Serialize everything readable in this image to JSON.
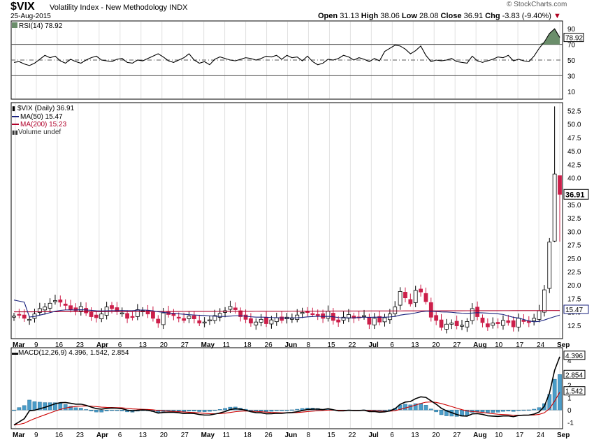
{
  "header": {
    "symbol": "$VIX",
    "name": "Volatility Index - New Methodology",
    "exchange": "INDX",
    "date": "25-Aug-2015",
    "watermark": "© StockCharts.com",
    "open_label": "Open",
    "open": "31.13",
    "high_label": "High",
    "high": "38.06",
    "low_label": "Low",
    "low": "28.08",
    "close_label": "Close",
    "close": "36.91",
    "chg_label": "Chg",
    "chg": "-3.83 (-9.40%)",
    "chg_arrow": "▼"
  },
  "colors": {
    "up": "#ffffff",
    "down": "#cc1f4a",
    "ma50": "#1a237e",
    "ma200": "#b0002a",
    "rsi_fill": "#6b8e6b",
    "hist": "#4a9cc8",
    "macd": "#000000",
    "signal": "#cc0000",
    "grid": "#e2e2e2"
  },
  "chart_data": [
    {
      "type": "line",
      "title": "RSI(14) 78.92",
      "series": [
        {
          "name": "RSI(14)",
          "values": [
            47,
            48,
            45,
            43,
            46,
            51,
            56,
            53,
            55,
            49,
            46,
            51,
            48,
            46,
            50,
            53,
            55,
            50,
            49,
            48,
            51,
            52,
            47,
            46,
            50,
            49,
            52,
            55,
            58,
            54,
            49,
            47,
            50,
            53,
            58,
            50,
            46,
            48,
            44,
            51,
            54,
            52,
            50,
            49,
            51,
            53,
            52,
            50,
            52,
            55,
            54,
            56,
            51,
            56,
            53,
            54,
            49,
            55,
            48,
            44,
            46,
            51,
            50,
            52,
            56,
            54,
            50,
            53,
            51,
            48,
            52,
            49,
            61,
            65,
            69,
            68,
            64,
            58,
            62,
            68,
            56,
            48,
            50,
            49,
            50,
            52,
            48,
            47,
            46,
            55,
            49,
            47,
            49,
            51,
            54,
            53,
            56,
            49,
            51,
            49,
            48,
            55,
            65,
            73,
            84,
            90,
            78.92
          ]
        }
      ],
      "ylim": [
        0,
        100
      ],
      "yticks": [
        10,
        30,
        50,
        70,
        90
      ],
      "reference_lines": [
        30,
        50,
        70
      ],
      "last_value": "78.92"
    },
    {
      "type": "candlestick",
      "title": "$VIX (Daily) 36.91",
      "legend": [
        {
          "label": "MA(50) 15.47"
        },
        {
          "label": "MA(200) 15.23"
        },
        {
          "label": "Volume undef"
        }
      ],
      "ylim": [
        10,
        54
      ],
      "yticks": [
        12.5,
        15.0,
        17.5,
        20.0,
        22.5,
        25.0,
        27.5,
        30.0,
        32.5,
        35.0,
        37.5,
        40.0,
        42.5,
        45.0,
        47.5,
        50.0,
        52.5
      ],
      "tags": {
        "close": "36.91",
        "ma": "15.47"
      },
      "x_labels": [
        "Mar",
        "9",
        "16",
        "23",
        "Apr",
        "6",
        "13",
        "20",
        "27",
        "May",
        "11",
        "18",
        "26",
        "Jun",
        "8",
        "15",
        "22",
        "Jul",
        "6",
        "13",
        "20",
        "27",
        "Aug",
        "10",
        "17",
        "24",
        "Sep"
      ],
      "closes": [
        14.2,
        14.5,
        13.8,
        13.6,
        14.6,
        15.6,
        15.9,
        16.6,
        17.1,
        16.8,
        16.2,
        15.4,
        15.2,
        16.0,
        14.8,
        14.1,
        13.9,
        14.6,
        15.9,
        15.6,
        15.1,
        14.8,
        13.8,
        14.1,
        15.4,
        15.2,
        14.6,
        13.8,
        12.9,
        14.8,
        14.5,
        14.3,
        13.9,
        13.4,
        14.2,
        13.7,
        12.9,
        13.1,
        13.5,
        14.3,
        14.7,
        15.2,
        16.0,
        15.4,
        14.1,
        13.6,
        12.9,
        13.1,
        13.6,
        12.8,
        13.5,
        13.9,
        13.4,
        14.0,
        13.8,
        14.4,
        14.9,
        15.0,
        14.6,
        14.3,
        13.8,
        15.1,
        13.4,
        13.1,
        14.0,
        14.5,
        13.8,
        14.0,
        14.3,
        12.7,
        13.8,
        13.1,
        13.9,
        14.6,
        15.9,
        18.8,
        17.6,
        16.5,
        19.0,
        18.7,
        16.9,
        14.0,
        13.4,
        12.1,
        12.7,
        12.9,
        12.4,
        12.5,
        13.2,
        15.6,
        14.1,
        13.0,
        12.2,
        12.9,
        12.8,
        13.4,
        13.0,
        12.2,
        13.8,
        13.2,
        13.0,
        13.8,
        15.2,
        19.1,
        28.0,
        40.7,
        36.91
      ]
    },
    {
      "type": "line",
      "title": "MACD(12,26,9) 4.396, 1.542, 2.854",
      "series": [
        {
          "name": "MACD(12,26,9)",
          "last": "4.396"
        },
        {
          "name": "Signal",
          "last": "1.542"
        },
        {
          "name": "Histogram",
          "last": "2.854"
        }
      ],
      "ylim": [
        -1.5,
        5.0
      ],
      "yticks": [
        -1,
        0,
        1,
        2,
        3,
        4
      ]
    }
  ]
}
